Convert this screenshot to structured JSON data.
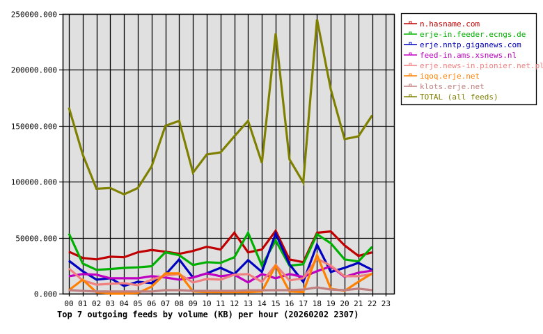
{
  "chart_data": {
    "type": "line",
    "title": "Top 7 outgoing feeds by volume (KB) per hour (20260202 2307)",
    "xlabel": "",
    "ylabel": "",
    "ylim": [
      0,
      250000
    ],
    "yticks": [
      "0.000",
      "50000.000",
      "100000.000",
      "150000.000",
      "200000.000",
      "250000.000"
    ],
    "ytick_values": [
      0,
      50000,
      100000,
      150000,
      200000,
      250000
    ],
    "categories": [
      "00",
      "01",
      "02",
      "03",
      "04",
      "05",
      "06",
      "07",
      "08",
      "09",
      "10",
      "11",
      "12",
      "13",
      "14",
      "15",
      "16",
      "17",
      "18",
      "19",
      "20",
      "21",
      "22",
      "23"
    ],
    "grid": true,
    "legend_position": "right",
    "plot_background": "#e0e0e0",
    "series": [
      {
        "name": "n.hasname.com",
        "color": "#c00000",
        "values": [
          37500,
          31900,
          30600,
          33000,
          32500,
          37000,
          39000,
          37500,
          35600,
          38100,
          41900,
          39400,
          54400,
          36900,
          39400,
          56250,
          30600,
          28100,
          54400,
          55600,
          43100,
          33750,
          36900
        ]
      },
      {
        "name": "erje-in.feeder.ecngs.de",
        "color": "#00b000",
        "values": [
          53750,
          26900,
          21250,
          22000,
          23000,
          23500,
          24500,
          37000,
          34400,
          25600,
          28100,
          27500,
          32500,
          54400,
          25000,
          47500,
          25000,
          26250,
          53100,
          45000,
          30600,
          28750,
          41900
        ]
      },
      {
        "name": "erje.nntp.giganews.com",
        "color": "#0000c0",
        "values": [
          29400,
          20000,
          12500,
          13750,
          6900,
          10600,
          9400,
          16900,
          30600,
          14400,
          18100,
          23100,
          17500,
          30000,
          19400,
          53750,
          26250,
          10600,
          43750,
          19400,
          23100,
          27500,
          21250
        ]
      },
      {
        "name": "feed-in.ams.xsnews.nl",
        "color": "#c000c0",
        "values": [
          15600,
          17500,
          16900,
          13750,
          13750,
          13750,
          15600,
          14400,
          12500,
          14400,
          18100,
          15600,
          16900,
          10000,
          17500,
          13750,
          17500,
          15000,
          20000,
          24400,
          15000,
          18750,
          20600
        ]
      },
      {
        "name": "erje.news-in.pionier.net.pl",
        "color": "#f08080",
        "values": [
          22500,
          11900,
          8000,
          8750,
          9400,
          7500,
          12500,
          16250,
          17500,
          10000,
          13100,
          12500,
          16900,
          17500,
          10600,
          25600,
          11900,
          13750,
          31250,
          25000,
          15600,
          15600,
          17500
        ]
      },
      {
        "name": "iqoq.erje.net",
        "color": "#ff8000",
        "values": [
          3100,
          12500,
          1250,
          0,
          0,
          500,
          6250,
          18100,
          18100,
          2000,
          1500,
          1500,
          1500,
          1500,
          2000,
          25000,
          2000,
          1500,
          34400,
          4400,
          2500,
          10600,
          18100
        ]
      },
      {
        "name": "klots.erje.net",
        "color": "#c08080",
        "values": [
          3100,
          2500,
          1900,
          1900,
          1900,
          1900,
          1900,
          3100,
          3100,
          2500,
          2500,
          2500,
          2500,
          3000,
          3000,
          3100,
          3100,
          3700,
          5600,
          3700,
          3100,
          4400,
          3100
        ]
      },
      {
        "name": "TOTAL (all feeds)",
        "color": "#808000",
        "values": [
          166250,
          124400,
          93750,
          94400,
          88750,
          94400,
          113750,
          150000,
          154400,
          108100,
          124400,
          126250,
          140600,
          154400,
          116900,
          232500,
          120000,
          99400,
          245000,
          182500,
          138100,
          140600,
          159400
        ]
      }
    ]
  }
}
